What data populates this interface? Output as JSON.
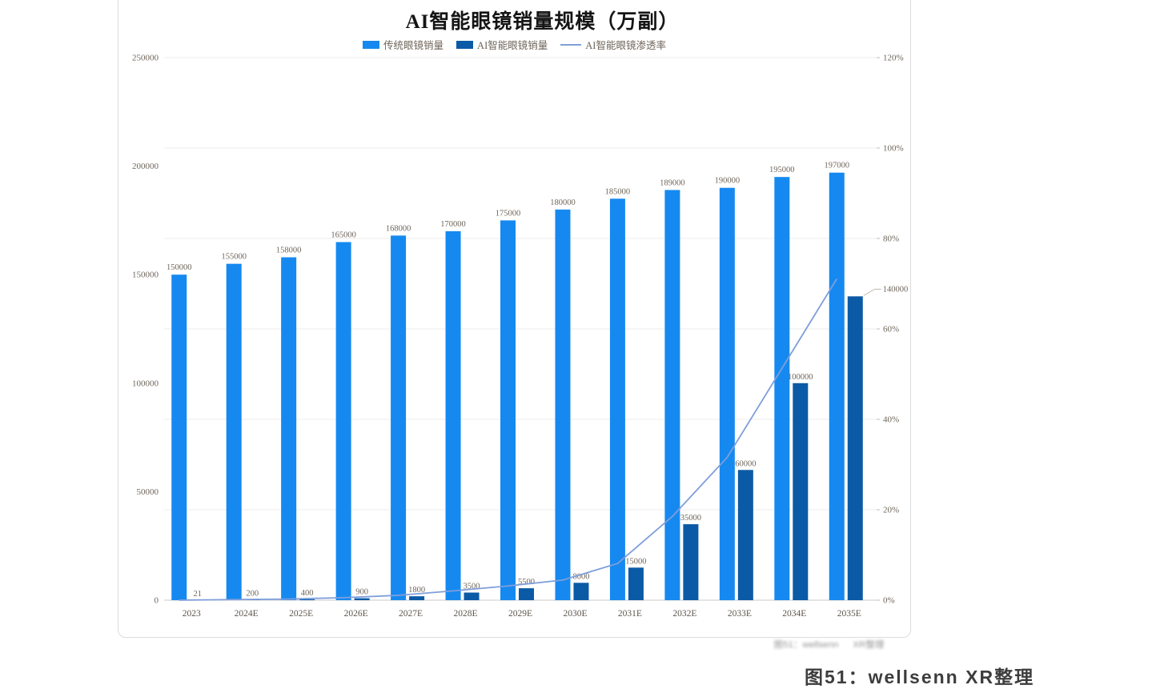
{
  "page": {
    "caption_bold": "图51：wellsenn XR整理",
    "caption_faint": "图51：wellsenn XR整理"
  },
  "chart_data": {
    "type": "bar",
    "title": "AI智能眼镜销量规模（万副）",
    "categories": [
      "2023",
      "2024E",
      "2025E",
      "2026E",
      "2027E",
      "2028E",
      "2029E",
      "2030E",
      "2031E",
      "2032E",
      "2033E",
      "2034E",
      "2035E"
    ],
    "series": [
      {
        "name": "传统眼镜销量",
        "type": "bar",
        "axis": "left",
        "color": "#1589f0",
        "values": [
          150000,
          155000,
          158000,
          165000,
          168000,
          170000,
          175000,
          180000,
          185000,
          189000,
          190000,
          195000,
          197000
        ]
      },
      {
        "name": "AI智能眼镜销量",
        "type": "bar",
        "axis": "left",
        "color": "#0b5aa6",
        "values": [
          21,
          200,
          400,
          900,
          1800,
          3500,
          5500,
          8000,
          15000,
          35000,
          60000,
          100000,
          140000
        ]
      },
      {
        "name": "AI智能眼镜渗透率",
        "type": "line",
        "axis": "right",
        "color": "#7f9edb",
        "values_pct": [
          0.01,
          0.13,
          0.25,
          0.55,
          1.07,
          2.06,
          3.14,
          4.44,
          8.11,
          18.52,
          31.58,
          51.28,
          71.07
        ]
      }
    ],
    "left_axis": {
      "min": 0,
      "max": 250000,
      "ticks": [
        0,
        50000,
        100000,
        150000,
        200000,
        250000
      ]
    },
    "right_axis": {
      "min_label": "0%",
      "max_label": "120%",
      "ticks": [
        "0%",
        "20%",
        "40%",
        "60%",
        "80%",
        "100%",
        "120%"
      ]
    },
    "grid": "horizontal lines at right-axis 20% steps",
    "legend_position": "top",
    "label_color": "#6f655b"
  }
}
